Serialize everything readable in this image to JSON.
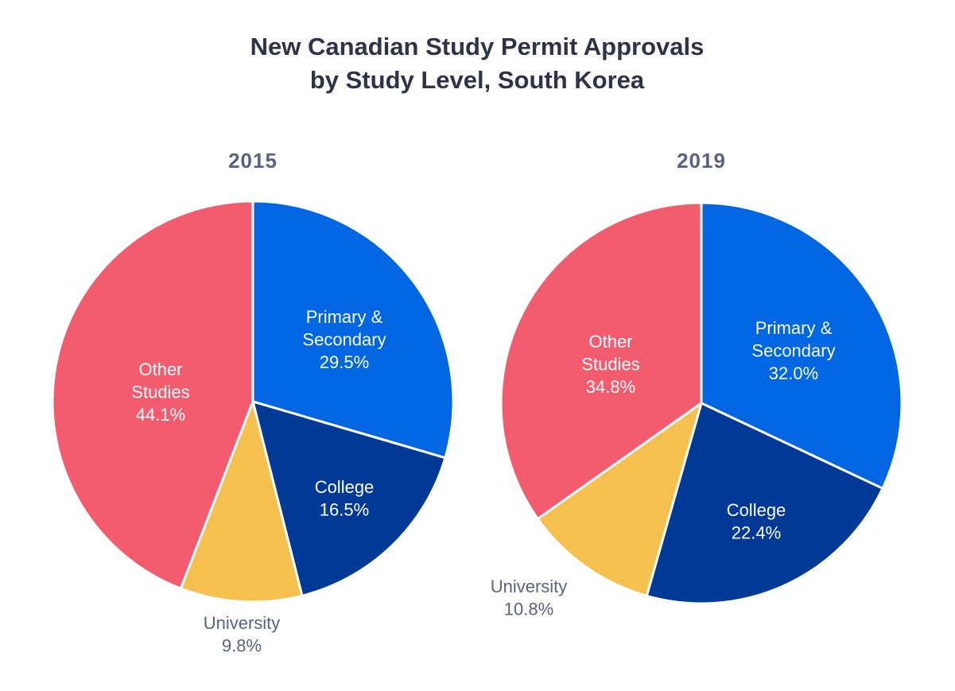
{
  "chart_data": {
    "title": [
      "New Canadian Study Permit Approvals",
      "by Study Level, South Korea"
    ],
    "charts": [
      {
        "type": "pie",
        "title": "2015",
        "start": "12 o'clock, clockwise",
        "slices": [
          {
            "label": [
              "Primary &",
              "Secondary"
            ],
            "value": 29.5,
            "value_label": "29.5%",
            "color": "#0066e1",
            "label_color": "#ffffff"
          },
          {
            "label": [
              "College"
            ],
            "value": 16.5,
            "value_label": "16.5%",
            "color": "#003a96",
            "label_color": "#ffffff"
          },
          {
            "label": [
              "University"
            ],
            "value": 9.8,
            "value_label": "9.8%",
            "color": "#f5c04d",
            "label_color": "#5b6280"
          },
          {
            "label": [
              "Other",
              "Studies"
            ],
            "value": 44.1,
            "value_label": "44.1%",
            "color": "#f25c6e",
            "label_color": "#ffffff"
          }
        ]
      },
      {
        "type": "pie",
        "title": "2019",
        "start": "12 o'clock, clockwise",
        "slices": [
          {
            "label": [
              "Primary &",
              "Secondary"
            ],
            "value": 32.0,
            "value_label": "32.0%",
            "color": "#0066e1",
            "label_color": "#ffffff"
          },
          {
            "label": [
              "College"
            ],
            "value": 22.4,
            "value_label": "22.4%",
            "color": "#003a96",
            "label_color": "#ffffff"
          },
          {
            "label": [
              "University"
            ],
            "value": 10.8,
            "value_label": "10.8%",
            "color": "#f5c04d",
            "label_color": "#5b6280"
          },
          {
            "label": [
              "Other",
              "Studies"
            ],
            "value": 34.8,
            "value_label": "34.8%",
            "color": "#f25c6e",
            "label_color": "#ffffff"
          }
        ]
      }
    ]
  }
}
